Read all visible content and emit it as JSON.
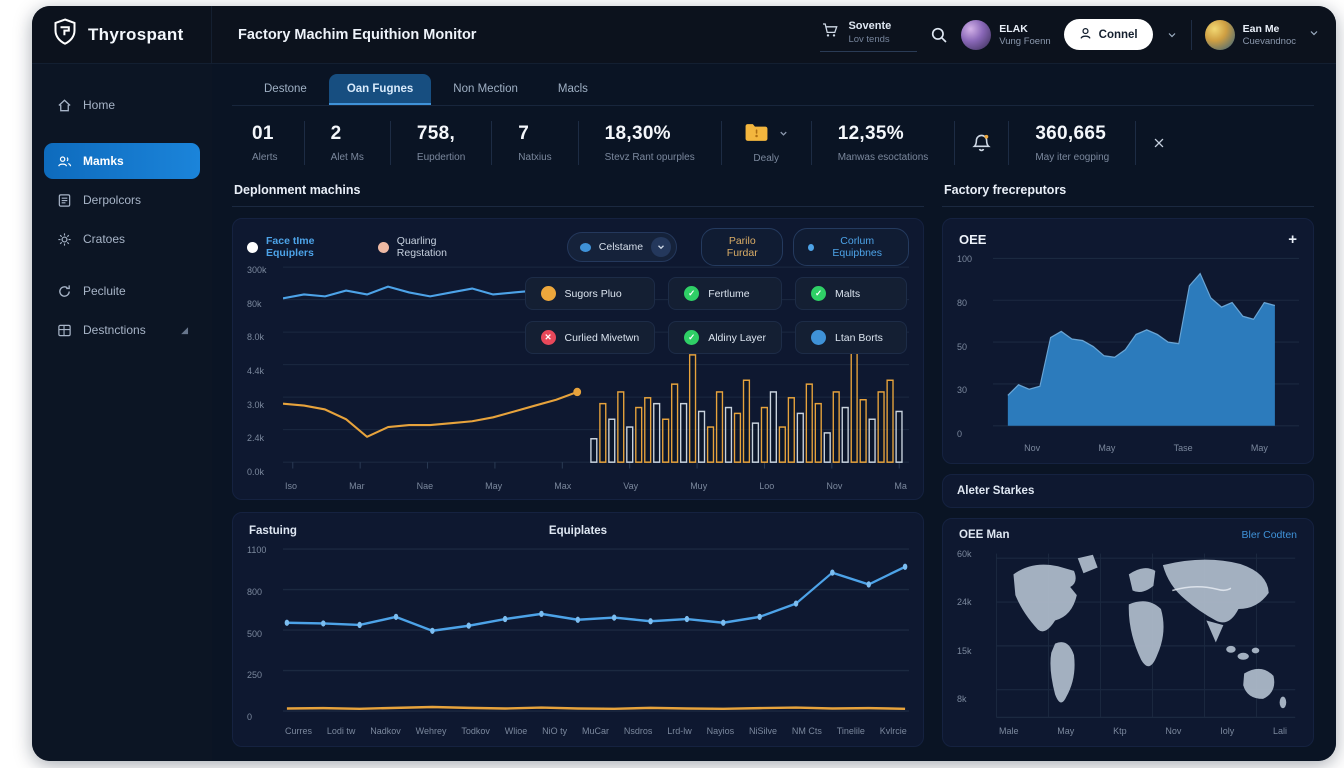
{
  "brand": {
    "name": "Thyrospant"
  },
  "topbar": {
    "title": "Factory Machim Equithion Monitor",
    "cart": {
      "label": "Sovente",
      "sublabel": "Lov tends"
    },
    "user1": {
      "name": "ELAK",
      "sub": "Vung Foenn"
    },
    "connect_label": "Connel",
    "user2": {
      "name": "Ean Me",
      "sub": "Cuevandnoc"
    }
  },
  "sidebar": {
    "items": [
      {
        "label": "Home",
        "icon": "home",
        "active": false
      },
      {
        "label": "Mamks",
        "icon": "users",
        "active": true
      },
      {
        "label": "Derpolcors",
        "icon": "documents",
        "active": false
      },
      {
        "label": "Cratoes",
        "icon": "gear",
        "active": false
      },
      {
        "label": "Pecluite",
        "icon": "refresh",
        "active": false
      },
      {
        "label": "Destnctions",
        "icon": "grid",
        "active": false
      }
    ]
  },
  "tabs": [
    {
      "label": "Destone",
      "active": false
    },
    {
      "label": "Oan Fugnes",
      "active": true
    },
    {
      "label": "Non Mection",
      "active": false
    },
    {
      "label": "Macls",
      "active": false
    }
  ],
  "kpis": [
    {
      "value": "01",
      "label": "Alerts"
    },
    {
      "value": "2",
      "label": "Alet Ms"
    },
    {
      "value": "758,",
      "label": "Eupdertion"
    },
    {
      "value": "7",
      "label": "Natxius"
    },
    {
      "value": "18,30%",
      "label": "Stevz Rant opurples"
    },
    {
      "value": "12,35%",
      "label": "Manwas esoctations"
    },
    {
      "value": "360,665",
      "label": "May iter eogping"
    }
  ],
  "kpi_folder_label": "Dealy",
  "left_section": {
    "title": "Deplonment machins",
    "legend": [
      {
        "label": "Face tIme Equiplers",
        "color": "#ffffff"
      },
      {
        "label": "Quarling Regstation",
        "color": "#edb9a4"
      }
    ],
    "select_label": "Celstame",
    "select_dot_color": "#3f92d8",
    "buttons": [
      {
        "label": "Parilo Furdar",
        "color": "#d9ac66"
      },
      {
        "label": "Corlum Equipbnes",
        "color": "#4da3e8"
      }
    ],
    "chips": [
      {
        "label": "Sugors Pluo",
        "color": "#eda73c",
        "glyph": ""
      },
      {
        "label": "Fertlume",
        "color": "#2fcf66",
        "glyph": "✓"
      },
      {
        "label": "Malts",
        "color": "#2fcf66",
        "glyph": "✓"
      },
      {
        "label": "Curlied Mivetwn",
        "color": "#e8485a",
        "glyph": "✕"
      },
      {
        "label": "Aldiny Layer",
        "color": "#2fcf66",
        "glyph": "✓"
      },
      {
        "label": "Ltan Borts",
        "color": "#3f92d8",
        "glyph": ""
      }
    ]
  },
  "bottom_card": {
    "title_left": "Fastuing",
    "title_center": "Equiplates"
  },
  "right_section": {
    "title": "Factory frecreputors",
    "oee_title": "OEE",
    "plus_label": "+",
    "alerts_title": "Aleter Starkes",
    "map_title": "OEE Man",
    "map_link": "Bler Codten"
  },
  "colors": {
    "blue": "#4da3e8",
    "orange": "#e7a33c",
    "bar_gray": "#c9d3de",
    "area": "#2e7fc2",
    "grid": "#1b2940",
    "accent": "#1779cf"
  },
  "chart_data": [
    {
      "name": "deployment_machines",
      "type": "line+bar",
      "ylabels": [
        "300k",
        "80k",
        "8.0k",
        "4.4k",
        "3.0k",
        "2.4k",
        "0.0k"
      ],
      "xlabels": [
        "Iso",
        "Mar",
        "Nae",
        "May",
        "Max",
        "Vay",
        "Muy",
        "Loo",
        "Nov",
        "Ma"
      ],
      "series": [
        {
          "name": "Face tIme Equiplers",
          "color": "#4da3e8",
          "norm_values": [
            0.84,
            0.86,
            0.85,
            0.88,
            0.86,
            0.9,
            0.87,
            0.85,
            0.87,
            0.89,
            0.86,
            0.87,
            0.88,
            0.86,
            0.87
          ]
        },
        {
          "name": "Quarling Regstation",
          "color": "#e7a33c",
          "norm_values": [
            0.3,
            0.29,
            0.27,
            0.22,
            0.13,
            0.18,
            0.19,
            0.19,
            0.2,
            0.21,
            0.23,
            0.26,
            0.29,
            0.32,
            0.36
          ]
        }
      ],
      "bars": [
        [
          0.12,
          "g"
        ],
        [
          0.3,
          "o"
        ],
        [
          0.22,
          "g"
        ],
        [
          0.36,
          "o"
        ],
        [
          0.18,
          "g"
        ],
        [
          0.28,
          "o"
        ],
        [
          0.33,
          "o"
        ],
        [
          0.3,
          "g"
        ],
        [
          0.22,
          "o"
        ],
        [
          0.4,
          "o"
        ],
        [
          0.3,
          "g"
        ],
        [
          0.55,
          "o"
        ],
        [
          0.26,
          "g"
        ],
        [
          0.18,
          "o"
        ],
        [
          0.36,
          "o"
        ],
        [
          0.28,
          "g"
        ],
        [
          0.25,
          "o"
        ],
        [
          0.42,
          "o"
        ],
        [
          0.2,
          "g"
        ],
        [
          0.28,
          "o"
        ],
        [
          0.36,
          "g"
        ],
        [
          0.18,
          "o"
        ],
        [
          0.33,
          "o"
        ],
        [
          0.25,
          "g"
        ],
        [
          0.4,
          "o"
        ],
        [
          0.3,
          "o"
        ],
        [
          0.15,
          "g"
        ],
        [
          0.36,
          "o"
        ],
        [
          0.28,
          "g"
        ],
        [
          0.62,
          "o"
        ],
        [
          0.32,
          "o"
        ],
        [
          0.22,
          "g"
        ],
        [
          0.36,
          "o"
        ],
        [
          0.42,
          "o"
        ],
        [
          0.26,
          "g"
        ]
      ]
    },
    {
      "name": "fastuing_equiplates",
      "type": "line",
      "ymax": 1100,
      "ylabels": [
        "1100",
        "800",
        "500",
        "250",
        "0"
      ],
      "xlabels": [
        "Curres",
        "Lodi tw",
        "Nadkov",
        "Wehrey",
        "Todkov",
        "Wlioe",
        "NiO ty",
        "MuCar",
        "Nsdros",
        "Lrd-lw",
        "Nayios",
        "NiSilve",
        "NM Cts",
        "Tinelile",
        "Kvlrcie"
      ],
      "series": [
        {
          "name": "blue",
          "color": "#4da3e8",
          "values": [
            600,
            595,
            585,
            640,
            545,
            580,
            625,
            660,
            620,
            635,
            610,
            625,
            600,
            640,
            730,
            940,
            860,
            980
          ]
        },
        {
          "name": "orange",
          "color": "#e7a33c",
          "values": [
            18,
            20,
            16,
            22,
            28,
            22,
            18,
            24,
            18,
            16,
            22,
            18,
            16,
            20,
            24,
            18,
            20,
            16
          ]
        }
      ]
    },
    {
      "name": "oee",
      "type": "area",
      "ymax": 110,
      "ylabels": [
        "100",
        "80",
        "50",
        "30",
        "0"
      ],
      "xlabels": [
        "Nov",
        "May",
        "Tase",
        "May"
      ],
      "area": [
        20,
        27,
        24,
        26,
        58,
        62,
        57,
        56,
        52,
        46,
        45,
        50,
        60,
        63,
        60,
        55,
        54,
        92,
        100,
        84,
        78,
        81,
        72,
        70,
        81,
        79
      ]
    },
    {
      "name": "oee_map",
      "type": "map",
      "ylabels": [
        "60k",
        "24k",
        "15k",
        "8k"
      ],
      "xlabels": [
        "Male",
        "May",
        "Ktp",
        "Nov",
        "Ioly",
        "Lali"
      ]
    }
  ]
}
